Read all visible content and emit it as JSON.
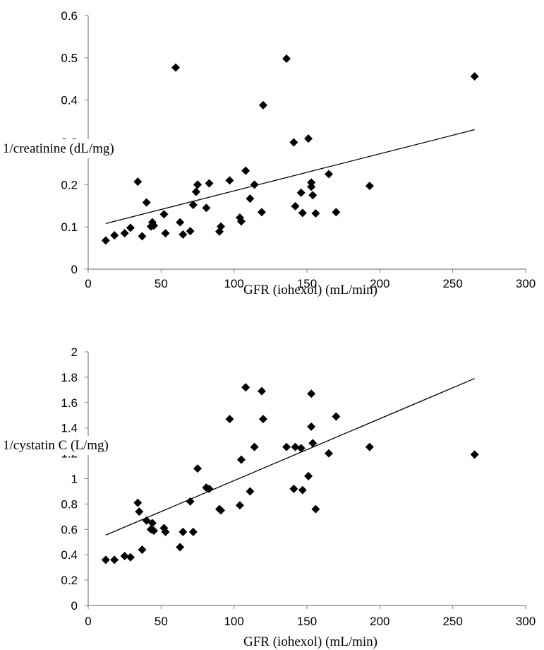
{
  "chart_data": [
    {
      "type": "scatter",
      "xlabel": "GFR (iohexol) (mL/min)",
      "ylabel": "1/creatinine (dL/mg)",
      "xlim": [
        0,
        300
      ],
      "ylim": [
        0,
        0.6
      ],
      "x_ticks": [
        "0",
        "50",
        "100",
        "150",
        "200",
        "250",
        "300"
      ],
      "y_ticks": [
        "0",
        "0.1",
        "0.2",
        "0.3",
        "0.4",
        "0.5",
        "0.6"
      ],
      "grid": false,
      "trendline": {
        "x": [
          12,
          265
        ],
        "y": [
          0.108,
          0.33
        ]
      },
      "series": [
        {
          "x": [
            12,
            18,
            25,
            29,
            34,
            37,
            40,
            43,
            44,
            45,
            52,
            53,
            60,
            63,
            65,
            70,
            72,
            74,
            75,
            75,
            81,
            83,
            90,
            91,
            97,
            104,
            105,
            108,
            111,
            114,
            119,
            120,
            136,
            141,
            142,
            146,
            147,
            151,
            153,
            153,
            154,
            156,
            165,
            170,
            193,
            265
          ],
          "y": [
            0.068,
            0.08,
            0.085,
            0.098,
            0.207,
            0.078,
            0.158,
            0.101,
            0.111,
            0.103,
            0.13,
            0.085,
            0.477,
            0.111,
            0.082,
            0.09,
            0.152,
            0.183,
            0.2,
            0.2,
            0.145,
            0.203,
            0.089,
            0.101,
            0.21,
            0.122,
            0.113,
            0.233,
            0.167,
            0.2,
            0.135,
            0.388,
            0.498,
            0.3,
            0.149,
            0.181,
            0.133,
            0.309,
            0.205,
            0.195,
            0.175,
            0.132,
            0.225,
            0.135,
            0.197,
            0.456
          ]
        }
      ]
    },
    {
      "type": "scatter",
      "xlabel": "GFR (iohexol) (mL/min)",
      "ylabel": "1/cystatin C (L/mg)",
      "xlim": [
        0,
        300
      ],
      "ylim": [
        0,
        2
      ],
      "x_ticks": [
        "0",
        "50",
        "100",
        "150",
        "200",
        "250",
        "300"
      ],
      "y_ticks": [
        "0",
        "0.2",
        "0.4",
        "0.6",
        "0.8",
        "1",
        "1.2",
        "1.4",
        "1.6",
        "1.8",
        "2"
      ],
      "grid": false,
      "trendline": {
        "x": [
          12,
          265
        ],
        "y": [
          0.555,
          1.79
        ]
      },
      "series": [
        {
          "x": [
            12,
            18,
            25,
            29,
            34,
            35,
            37,
            40,
            43,
            44,
            45,
            52,
            53,
            63,
            65,
            70,
            72,
            75,
            81,
            83,
            90,
            91,
            97,
            104,
            105,
            108,
            111,
            114,
            119,
            120,
            136,
            141,
            142,
            146,
            147,
            151,
            153,
            153,
            154,
            156,
            165,
            170,
            193,
            265
          ],
          "y": [
            0.36,
            0.36,
            0.39,
            0.38,
            0.81,
            0.74,
            0.44,
            0.67,
            0.6,
            0.65,
            0.59,
            0.61,
            0.58,
            0.46,
            0.58,
            0.82,
            0.58,
            1.08,
            0.93,
            0.92,
            0.76,
            0.75,
            1.47,
            0.79,
            1.15,
            1.72,
            0.9,
            1.25,
            1.69,
            1.47,
            1.25,
            0.92,
            1.25,
            1.24,
            0.91,
            1.02,
            1.67,
            1.41,
            1.28,
            0.76,
            1.2,
            1.49,
            1.25,
            1.19
          ]
        }
      ]
    }
  ]
}
